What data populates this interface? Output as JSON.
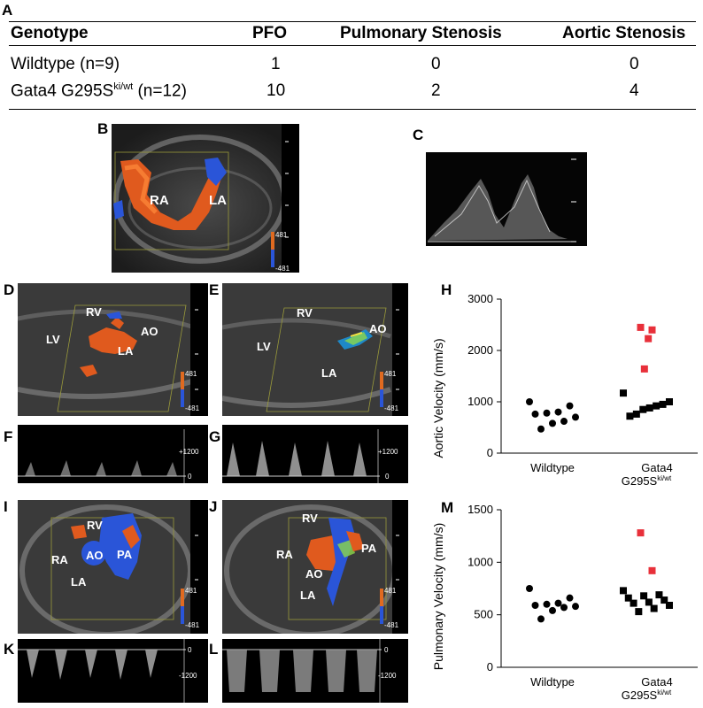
{
  "panel_letters": {
    "A": "A",
    "B": "B",
    "C": "C",
    "D": "D",
    "E": "E",
    "F": "F",
    "G": "G",
    "H": "H",
    "I": "I",
    "J": "J",
    "K": "K",
    "L": "L",
    "M": "M"
  },
  "table": {
    "headers": [
      "Genotype",
      "PFO",
      "Pulmonary Stenosis",
      "Aortic Stenosis"
    ],
    "rows": [
      {
        "genotype": "Wildtype (n=9)",
        "genotype_sup": "",
        "genotype_suffix": "",
        "pfo": "1",
        "ps": "0",
        "as": "0"
      },
      {
        "genotype": "Gata4 G295S",
        "genotype_sup": "ki/wt",
        "genotype_suffix": " (n=12)",
        "pfo": "10",
        "ps": "2",
        "as": "4"
      }
    ]
  },
  "echo_labels": {
    "B": {
      "ra": "RA",
      "la": "LA",
      "scale_top": "481",
      "scale_bottom": "-481"
    },
    "D": {
      "rv": "RV",
      "lv": "LV",
      "ao": "AO",
      "la": "LA",
      "scale_top": "481",
      "scale_bottom": "-481"
    },
    "E": {
      "rv": "RV",
      "lv": "LV",
      "ao": "AO",
      "la": "LA",
      "scale_top": "481",
      "scale_bottom": "-481"
    },
    "F": {
      "tick1": "+1200",
      "tick2": "0"
    },
    "G": {
      "tick1": "+1200",
      "tick2": "0"
    },
    "I": {
      "rv": "RV",
      "ra": "RA",
      "ao": "AO",
      "pa": "PA",
      "la": "LA",
      "scale_top": "481",
      "scale_bottom": "-481"
    },
    "J": {
      "rv": "RV",
      "ra": "RA",
      "ao": "AO",
      "pa": "PA",
      "la": "LA",
      "scale_top": "481",
      "scale_bottom": "-481"
    },
    "K": {
      "tick1": "0",
      "tick2": "-1200"
    },
    "L": {
      "tick1": "0",
      "tick2": "-1200"
    }
  },
  "chart_data": [
    {
      "panel": "H",
      "type": "scatter",
      "title": "",
      "ylabel": "Aortic Velocity (mm/s)",
      "xlabel": "",
      "ylim": [
        0,
        3000
      ],
      "yticks": [
        0,
        1000,
        2000,
        3000
      ],
      "categories": [
        {
          "name": "Wildtype",
          "name_line2": "",
          "name_sup": ""
        },
        {
          "name": "Gata4",
          "name_line2": "G295S",
          "name_sup": "ki/wt"
        }
      ],
      "series": [
        {
          "category": "Wildtype",
          "marker": "circle",
          "color": "#000000",
          "values": [
            1000,
            920,
            800,
            780,
            760,
            700,
            620,
            580,
            470
          ]
        },
        {
          "category": "Gata4 G295S",
          "marker": "square",
          "color": "#000000",
          "values": [
            1170,
            1000,
            950,
            920,
            880,
            850,
            760,
            720
          ]
        },
        {
          "category": "Gata4 G295S",
          "marker": "square",
          "color": "#e8303a",
          "values": [
            2450,
            2400,
            2230,
            1640
          ]
        }
      ]
    },
    {
      "panel": "M",
      "type": "scatter",
      "title": "",
      "ylabel": "Pulmonary Velocity (mm/s)",
      "xlabel": "",
      "ylim": [
        0,
        1500
      ],
      "yticks": [
        0,
        500,
        1000,
        1500
      ],
      "categories": [
        {
          "name": "Wildtype",
          "name_line2": "",
          "name_sup": ""
        },
        {
          "name": "Gata4",
          "name_line2": "G295S",
          "name_sup": "ki/wt"
        }
      ],
      "series": [
        {
          "category": "Wildtype",
          "marker": "circle",
          "color": "#000000",
          "values": [
            750,
            660,
            610,
            600,
            590,
            580,
            570,
            540,
            460
          ]
        },
        {
          "category": "Gata4 G295S",
          "marker": "square",
          "color": "#000000",
          "values": [
            730,
            690,
            680,
            660,
            640,
            620,
            610,
            590,
            560,
            530
          ]
        },
        {
          "category": "Gata4 G295S",
          "marker": "square",
          "color": "#e8303a",
          "values": [
            1280,
            920
          ]
        }
      ]
    }
  ]
}
